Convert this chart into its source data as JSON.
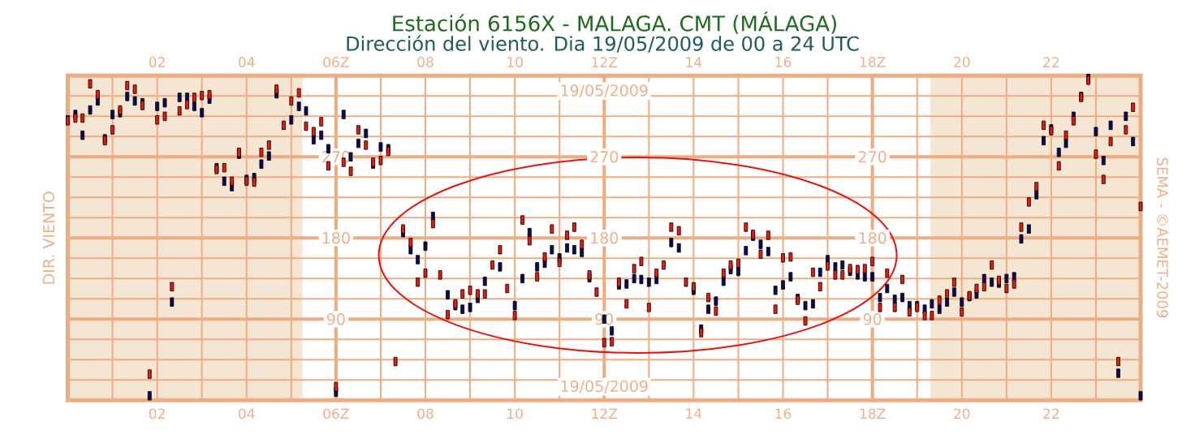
{
  "chart_data": {
    "type": "scatter",
    "title": "Estación 6156X - MALAGA. CMT (MÁLAGA)",
    "subtitle": "Dirección del viento. Dia 19/05/2009 de 00 a 24 UTC",
    "ylabel": "DIR. VIENTO",
    "annotations": [
      "19/05/2009",
      "19/05/2009",
      "SEMA - ©AEMET-2009",
      "270",
      "180",
      "90",
      "270",
      "180",
      "90"
    ],
    "series": [
      {
        "color": "#0a0a5c",
        "x": [
          0,
          0.17,
          0.33,
          0.5,
          0.67,
          0.83,
          1,
          1.17,
          1.33,
          1.5,
          1.67,
          1.83,
          2,
          2.17,
          2.33,
          2.5,
          2.67,
          2.83,
          3,
          3.17,
          3.33,
          3.5,
          3.67,
          3.83,
          4,
          4.17,
          4.33,
          4.5,
          4.67,
          4.83,
          5,
          5.17,
          5.33,
          5.5,
          5.67,
          5.83,
          6,
          6.17,
          6.33,
          6.5,
          6.67,
          6.83,
          7,
          7.17,
          7.33,
          7.5,
          7.67,
          7.83,
          8,
          8.17,
          8.33,
          8.5,
          8.67,
          8.83,
          9,
          9.17,
          9.33,
          9.5,
          9.67,
          9.83,
          10,
          10.17,
          10.33,
          10.5,
          10.67,
          10.83,
          11,
          11.17,
          11.33,
          11.5,
          11.67,
          11.83,
          12,
          12.17,
          12.33,
          12.5,
          12.67,
          12.83,
          13,
          13.17,
          13.33,
          13.5,
          13.67,
          13.83,
          14,
          14.17,
          14.33,
          14.5,
          14.67,
          14.83,
          15,
          15.17,
          15.33,
          15.5,
          15.67,
          15.83,
          16,
          16.17,
          16.33,
          16.5,
          16.67,
          16.83,
          17,
          17.17,
          17.33,
          17.5,
          17.67,
          17.83,
          18,
          18.17,
          18.33,
          18.5,
          18.67,
          18.83,
          19,
          19.17,
          19.33,
          19.5,
          19.67,
          19.83,
          20,
          20.17,
          20.33,
          20.5,
          20.67,
          20.83,
          21,
          21.17,
          21.33,
          21.5,
          21.67,
          21.83,
          22,
          22.17,
          22.33,
          22.5,
          22.67,
          22.83,
          23,
          23.17,
          23.33,
          23.5,
          23.67,
          23.83,
          24
        ],
        "values": [
          311,
          317,
          294,
          322,
          332,
          290,
          317,
          319,
          337,
          332,
          330,
          5,
          326,
          330,
          109,
          336,
          336,
          326,
          319,
          334,
          258,
          243,
          237,
          273,
          245,
          247,
          262,
          271,
          340,
          null,
          311,
          326,
          321,
          289,
          294,
          279,
          9,
          317,
          270,
          285,
          296,
          262,
          281,
          279,
          null,
          186,
          167,
          156,
          171,
          204,
          null,
          117,
          105,
          101,
          103,
          113,
          132,
          null,
          148,
          null,
          105,
          135,
          186,
          148,
          152,
          167,
          158,
          169,
          167,
          164,
          136,
          null,
          90,
          77,
          128,
          129,
          135,
          134,
          131,
          134,
          null,
          175,
          169,
          null,
          122,
          79,
          101,
          110,
          132,
          145,
          143,
          166,
          182,
          173,
          165,
          122,
          128,
          137,
          113,
          105,
          107,
          142,
          156,
          148,
          150,
          143,
          139,
          137,
          137,
          114,
          124,
          112,
          114,
          105,
          105,
          101,
          107,
          101,
          109,
          120,
          109,
          115,
          118,
          135,
          131,
          130,
          135,
          137,
          179,
          190,
          228,
          288,
          301,
          275,
          285,
          315,
          337,
          357,
          298,
          266,
          305,
          30,
          315,
          287,
          5
        ]
      },
      {
        "color": "#e8190d",
        "x": [
          0,
          0.17,
          0.33,
          0.5,
          0.67,
          0.83,
          1,
          1.17,
          1.33,
          1.5,
          1.67,
          1.83,
          2,
          2.17,
          2.33,
          2.5,
          2.67,
          2.83,
          3,
          3.17,
          3.33,
          3.5,
          3.67,
          3.83,
          4,
          4.17,
          4.33,
          4.5,
          4.67,
          4.83,
          5,
          5.17,
          5.33,
          5.5,
          5.67,
          5.83,
          6,
          6.17,
          6.33,
          6.5,
          6.67,
          6.83,
          7,
          7.17,
          7.33,
          7.5,
          7.67,
          7.83,
          8,
          8.17,
          8.33,
          8.5,
          8.67,
          8.83,
          9,
          9.17,
          9.33,
          9.5,
          9.67,
          9.83,
          10,
          10.17,
          10.33,
          10.5,
          10.67,
          10.83,
          11,
          11.17,
          11.33,
          11.5,
          11.67,
          11.83,
          12,
          12.17,
          12.33,
          12.5,
          12.67,
          12.83,
          13,
          13.17,
          13.33,
          13.5,
          13.67,
          13.83,
          14,
          14.17,
          14.33,
          14.5,
          14.67,
          14.83,
          15,
          15.17,
          15.33,
          15.5,
          15.67,
          15.83,
          16,
          16.17,
          16.33,
          16.5,
          16.67,
          16.83,
          17,
          17.17,
          17.33,
          17.5,
          17.67,
          17.83,
          18,
          18.17,
          18.33,
          18.5,
          18.67,
          18.83,
          19,
          19.17,
          19.33,
          19.5,
          19.67,
          19.83,
          20,
          20.17,
          20.33,
          20.5,
          20.67,
          20.83,
          21,
          21.17,
          21.33,
          21.5,
          21.67,
          21.83,
          22,
          22.17,
          22.33,
          22.5,
          22.67,
          22.83,
          23,
          23.17,
          23.33,
          23.5,
          23.67,
          23.83,
          24
        ],
        "values": [
          310,
          313,
          313,
          351,
          339,
          288,
          300,
          322,
          349,
          345,
          327,
          29,
          311,
          315,
          126,
          321,
          328,
          336,
          338,
          339,
          256,
          258,
          243,
          275,
          243,
          242,
          275,
          283,
          345,
          305,
          332,
          341,
          304,
          298,
          309,
          260,
          15,
          264,
          254,
          300,
          283,
          264,
          266,
          276,
          43,
          190,
          175,
          131,
          141,
          196,
          139,
          95,
          107,
          118,
          122,
          118,
          118,
          150,
          167,
          124,
          94,
          200,
          177,
          137,
          159,
          190,
          153,
          183,
          192,
          173,
          139,
          120,
          64,
          65,
          131,
          107,
          146,
          154,
          103,
          141,
          150,
          192,
          188,
          131,
          126,
          75,
          114,
          99,
          141,
          150,
          152,
          192,
          184,
          162,
          183,
          101,
          158,
          159,
          111,
          88,
          142,
          126,
          149,
          139,
          139,
          146,
          145,
          146,
          154,
          103,
          141,
          103,
          134,
          98,
          103,
          94,
          94,
          111,
          118,
          131,
          98,
          116,
          124,
          126,
          150,
          133,
          124,
          129,
          192,
          220,
          237,
          305,
          299,
          260,
          294,
          310,
          336,
          355,
          273,
          245,
          287,
          43,
          300,
          325,
          215
        ]
      }
    ],
    "xlim": [
      0,
      24
    ],
    "ylim": [
      0,
      360
    ],
    "xticks": [
      {
        "value": 1,
        "label": null
      },
      {
        "value": 2,
        "label": "02"
      },
      {
        "value": 3,
        "label": null
      },
      {
        "value": 4,
        "label": "04"
      },
      {
        "value": 5,
        "label": null
      },
      {
        "value": 6,
        "label": "06Z"
      },
      {
        "value": 7,
        "label": null
      },
      {
        "value": 8,
        "label": "08"
      },
      {
        "value": 9,
        "label": null
      },
      {
        "value": 10,
        "label": "10"
      },
      {
        "value": 11,
        "label": null
      },
      {
        "value": 12,
        "label": "12Z"
      },
      {
        "value": 13,
        "label": null
      },
      {
        "value": 14,
        "label": "14"
      },
      {
        "value": 15,
        "label": null
      },
      {
        "value": 16,
        "label": "16"
      },
      {
        "value": 17,
        "label": null
      },
      {
        "value": 18,
        "label": "18Z"
      },
      {
        "value": 19,
        "label": null
      },
      {
        "value": 20,
        "label": "20"
      },
      {
        "value": 21,
        "label": null
      },
      {
        "value": 22,
        "label": "22"
      },
      {
        "value": 23,
        "label": null
      }
    ],
    "x2lim": [
      0,
      24
    ],
    "x2ticks": [
      {
        "value": 2,
        "label": "02"
      },
      {
        "value": 4,
        "label": "04"
      },
      {
        "value": 6,
        "label": "06Z"
      },
      {
        "value": 8,
        "label": "08"
      },
      {
        "value": 10,
        "label": "10"
      },
      {
        "value": 12,
        "label": "12Z"
      },
      {
        "value": 14,
        "label": "14"
      },
      {
        "value": 16,
        "label": "16"
      },
      {
        "value": 18,
        "label": "18Z"
      },
      {
        "value": 20,
        "label": "20"
      },
      {
        "value": 22,
        "label": "22"
      }
    ],
    "yticks": [
      {
        "value": 22.5,
        "label": null
      },
      {
        "value": 45,
        "label": null
      },
      {
        "value": 67.5,
        "label": null
      },
      90,
      {
        "value": 112.5,
        "label": null
      },
      {
        "value": 135,
        "label": null
      },
      {
        "value": 157.5,
        "label": null
      },
      180,
      {
        "value": 202.5,
        "label": null
      },
      {
        "value": 225,
        "label": null
      },
      {
        "value": 247.5,
        "label": null
      },
      270,
      {
        "value": 292.5,
        "label": null
      },
      {
        "value": 315,
        "label": null
      },
      {
        "value": 337.5,
        "label": null
      }
    ],
    "grid": true,
    "bands": [
      {
        "axis": "x",
        "from": 0,
        "to": 5.25,
        "color": "#f5e6d3"
      },
      {
        "axis": "x",
        "from": 19.3,
        "to": 24,
        "color": "#f5e6d3"
      }
    ]
  }
}
